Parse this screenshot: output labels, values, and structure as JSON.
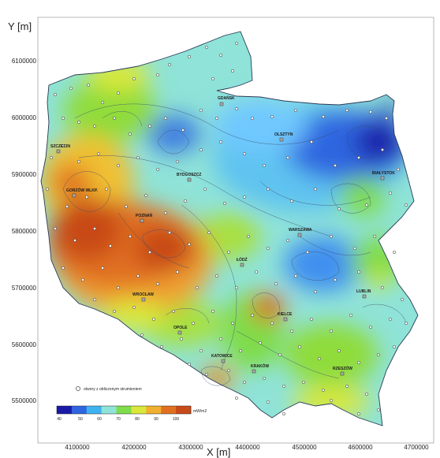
{
  "axes": {
    "y_title": "Y [m]",
    "x_title": "X [m]",
    "y_ticks": [
      "6100000",
      "6000000",
      "5900000",
      "5800000",
      "5700000",
      "5600000",
      "5500000"
    ],
    "x_ticks": [
      "4100000",
      "4200000",
      "4300000",
      "4400000",
      "4500000",
      "4600000",
      "4700000"
    ]
  },
  "cities": [
    {
      "key": "gdansk",
      "label": "GDAŃSK"
    },
    {
      "key": "olsztyn",
      "label": "OLSZTYN"
    },
    {
      "key": "szczecin",
      "label": "SZCZECIN"
    },
    {
      "key": "bydgoszcz",
      "label": "BYDGOSZCZ"
    },
    {
      "key": "bialystok",
      "label": "BIAŁYSTOK"
    },
    {
      "key": "gorzow",
      "label": "GORZÓW WLKP."
    },
    {
      "key": "warszawa",
      "label": "WARSZAWA"
    },
    {
      "key": "poznan",
      "label": "POZNAŃ"
    },
    {
      "key": "lodz",
      "label": "ŁÓDŹ"
    },
    {
      "key": "lublin",
      "label": "LUBLIN"
    },
    {
      "key": "wroclaw",
      "label": "WROCŁAW"
    },
    {
      "key": "kielce",
      "label": "KIELCE"
    },
    {
      "key": "opole",
      "label": "OPOLE"
    },
    {
      "key": "katowice",
      "label": "KATOWICE"
    },
    {
      "key": "krakow",
      "label": "KRAKÓW"
    },
    {
      "key": "rzeszow",
      "label": "RZESZÓW"
    }
  ],
  "legend": {
    "marker_label": "otwory z obliczonym strumieniem"
  },
  "colorbar": {
    "ticks": [
      "40",
      "50",
      "60",
      "70",
      "80",
      "90",
      "100"
    ],
    "unit": "mW/m2",
    "colors": [
      "#1a1aa8",
      "#2f66e0",
      "#3fb3f0",
      "#8fe3d8",
      "#7fdc4a",
      "#d9e83a",
      "#f0b030",
      "#e07020",
      "#c84a18"
    ]
  },
  "colors": {
    "background": "#ffffff",
    "outline": "#2a3a55",
    "contour": "#3b4a70",
    "marker_fill": "#ffffff",
    "marker_stroke": "#222222"
  }
}
